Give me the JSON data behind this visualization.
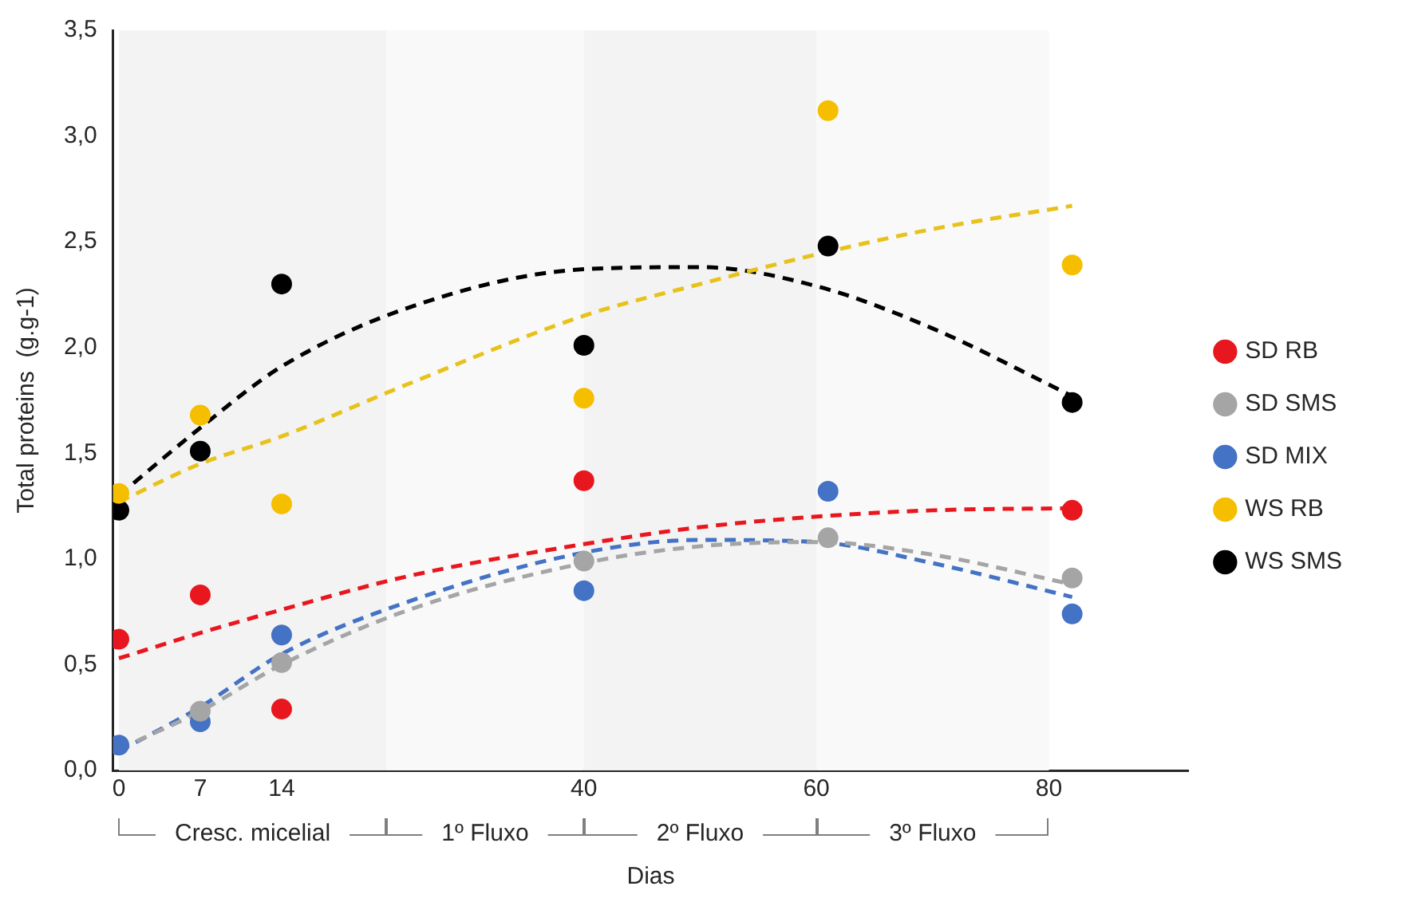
{
  "chart_data": {
    "type": "scatter",
    "xlabel": "Dias",
    "ylabel": "Total proteins  (g.g-1)",
    "x": [
      0,
      7,
      14,
      40,
      61,
      82
    ],
    "xlim": [
      -0.5,
      92
    ],
    "xticks": [
      0,
      7,
      14,
      40,
      60,
      80
    ],
    "ylim": [
      0,
      3.5
    ],
    "yticks": [
      {
        "value": 0,
        "label": "0,0"
      },
      {
        "value": 0.5,
        "label": "0,5"
      },
      {
        "value": 1,
        "label": "1,0"
      },
      {
        "value": 1.5,
        "label": "1,5"
      },
      {
        "value": 2,
        "label": "2,0"
      },
      {
        "value": 2.5,
        "label": "2,5"
      },
      {
        "value": 3,
        "label": "3,0"
      },
      {
        "value": 3.5,
        "label": "3,5"
      }
    ],
    "grid": false,
    "legend": "right",
    "marker": "circle",
    "bands": [
      {
        "axis": "x",
        "from": 0,
        "to": 23,
        "label": "Cresc. micelial",
        "color": "#f3f3f3"
      },
      {
        "axis": "x",
        "from": 23,
        "to": 40,
        "label": "1º Fluxo",
        "color": "#f9f9f9"
      },
      {
        "axis": "x",
        "from": 40,
        "to": 60,
        "label": "2º Fluxo",
        "color": "#f3f3f3"
      },
      {
        "axis": "x",
        "from": 60,
        "to": 80,
        "label": "3º Fluxo",
        "color": "#f9f9f9"
      }
    ],
    "series": [
      {
        "type": "line",
        "color": "#e8171f",
        "line_style": "dashed",
        "marker": "none",
        "x": [
          0,
          7,
          14,
          25,
          40,
          50,
          60,
          70,
          82
        ],
        "values": [
          0.53,
          0.65,
          0.76,
          0.92,
          1.07,
          1.15,
          1.2,
          1.23,
          1.24
        ]
      },
      {
        "type": "line",
        "color": "#a5a5a5",
        "line_style": "dashed",
        "marker": "none",
        "x": [
          0,
          7,
          14,
          25,
          40,
          50,
          60,
          70,
          82
        ],
        "values": [
          0.1,
          0.28,
          0.5,
          0.76,
          0.98,
          1.06,
          1.08,
          1.02,
          0.88
        ]
      },
      {
        "type": "line",
        "color": "#4472c4",
        "line_style": "dashed",
        "marker": "none",
        "x": [
          0,
          7,
          14,
          25,
          40,
          50,
          60,
          70,
          82
        ],
        "values": [
          0.09,
          0.3,
          0.55,
          0.8,
          1.03,
          1.09,
          1.08,
          0.98,
          0.82
        ]
      },
      {
        "type": "line",
        "color": "#e8c21a",
        "line_style": "dashed",
        "marker": "none",
        "x": [
          0,
          7,
          14,
          25,
          40,
          50,
          60,
          70,
          82
        ],
        "values": [
          1.27,
          1.45,
          1.58,
          1.83,
          2.15,
          2.3,
          2.44,
          2.56,
          2.67
        ]
      },
      {
        "type": "line",
        "color": "#000000",
        "line_style": "dashed",
        "marker": "none",
        "x": [
          0,
          7,
          14,
          25,
          40,
          50,
          60,
          70,
          82
        ],
        "values": [
          1.3,
          1.62,
          1.91,
          2.19,
          2.37,
          2.38,
          2.29,
          2.09,
          1.77
        ]
      },
      {
        "name": "SD RB",
        "color": "#e8171f",
        "values": [
          0.62,
          0.83,
          0.29,
          1.37,
          null,
          1.23
        ]
      },
      {
        "name": "SD SMS",
        "color": "#a5a5a5",
        "values": [
          null,
          0.28,
          0.51,
          0.99,
          1.1,
          0.91
        ]
      },
      {
        "name": "SD MIX",
        "color": "#4472c4",
        "values": [
          0.12,
          0.23,
          0.64,
          0.85,
          1.32,
          0.74
        ]
      },
      {
        "name": "WS RB",
        "color": "#f5bf00",
        "values": [
          1.31,
          1.68,
          1.26,
          1.76,
          3.12,
          2.39
        ]
      },
      {
        "name": "WS SMS",
        "color": "#000000",
        "values": [
          1.23,
          1.51,
          2.3,
          2.01,
          2.48,
          1.74
        ]
      }
    ]
  }
}
